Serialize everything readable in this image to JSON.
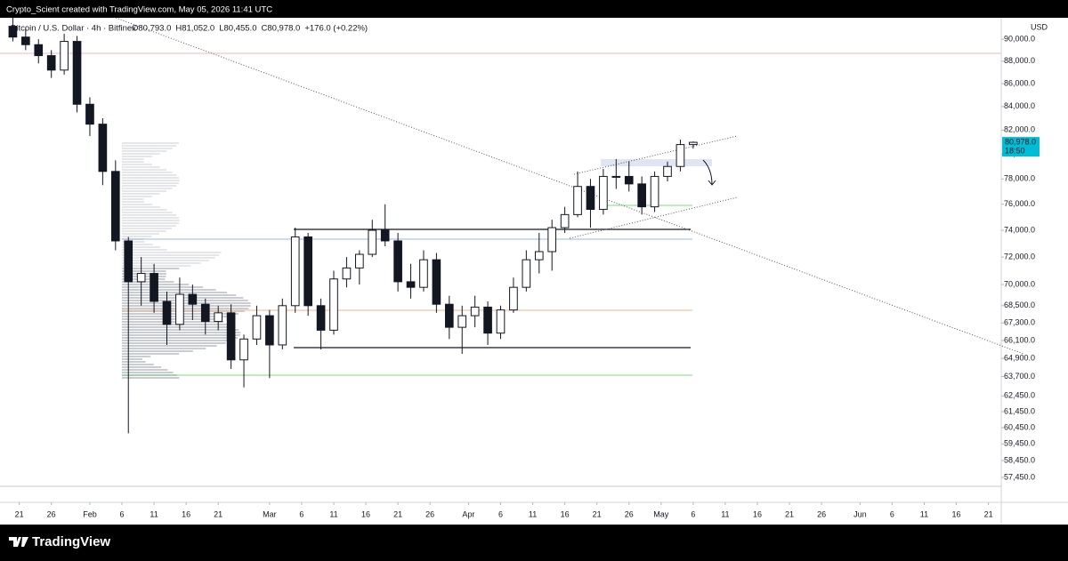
{
  "header": "Crypto_Scient created with TradingView.com, May 05, 2026 11:41 UTC",
  "brand": "TradingView",
  "chart_data": {
    "type": "candlestick",
    "title": "Bitcoin / U.S. Dollar · 4h · Bitfinex",
    "ohlc_labels": [
      "O80,793.0",
      "H81,052.0",
      "L80,455.0",
      "C80,978.0",
      "+176.0 (+0.22%)"
    ],
    "currency": "USD",
    "last_price_label": "80,978.0",
    "countdown": "18:50",
    "log_scale": true,
    "colors": {
      "up": "#ffffff",
      "down": "#131722",
      "wick": "#131722",
      "last_price": "#00bcd4"
    },
    "ylim": [
      56000,
      92000
    ],
    "yticks": [
      {
        "value": 90000,
        "label": "90,000.0"
      },
      {
        "value": 88000,
        "label": "88,000.0"
      },
      {
        "value": 86000,
        "label": "86,000.0"
      },
      {
        "value": 84000,
        "label": "84,000.0"
      },
      {
        "value": 82000,
        "label": "82,000.0"
      },
      {
        "value": 80000,
        "label": "80,000.0"
      },
      {
        "value": 78000,
        "label": "78,000.0"
      },
      {
        "value": 76000,
        "label": "76,000.0"
      },
      {
        "value": 74000,
        "label": "74,000.0"
      },
      {
        "value": 72000,
        "label": "72,000.0"
      },
      {
        "value": 70000,
        "label": "70,000.0"
      },
      {
        "value": 68500,
        "label": "68,500.0"
      },
      {
        "value": 67300,
        "label": "67,300.0"
      },
      {
        "value": 66100,
        "label": "66,100.0"
      },
      {
        "value": 64900,
        "label": "64,900.0"
      },
      {
        "value": 63700,
        "label": "63,700.0"
      },
      {
        "value": 62450,
        "label": "62,450.0"
      },
      {
        "value": 61450,
        "label": "61,450.0"
      },
      {
        "value": 60450,
        "label": "60,450.0"
      },
      {
        "value": 59450,
        "label": "59,450.0"
      },
      {
        "value": 58450,
        "label": "58,450.0"
      },
      {
        "value": 57450,
        "label": "57,450.0"
      }
    ],
    "xlim": [
      "2026-01-18",
      "2026-06-23"
    ],
    "xticks": [
      {
        "value": "2026-01-21",
        "label": "21"
      },
      {
        "value": "2026-01-26",
        "label": "26"
      },
      {
        "value": "2026-02-01",
        "label": "Feb"
      },
      {
        "value": "2026-02-06",
        "label": "6"
      },
      {
        "value": "2026-02-11",
        "label": "11"
      },
      {
        "value": "2026-02-16",
        "label": "16"
      },
      {
        "value": "2026-02-21",
        "label": "21"
      },
      {
        "value": "2026-03-01",
        "label": "Mar"
      },
      {
        "value": "2026-03-06",
        "label": "6"
      },
      {
        "value": "2026-03-11",
        "label": "11"
      },
      {
        "value": "2026-03-16",
        "label": "16"
      },
      {
        "value": "2026-03-21",
        "label": "21"
      },
      {
        "value": "2026-03-26",
        "label": "26"
      },
      {
        "value": "2026-04-01",
        "label": "Apr"
      },
      {
        "value": "2026-04-06",
        "label": "6"
      },
      {
        "value": "2026-04-11",
        "label": "11"
      },
      {
        "value": "2026-04-16",
        "label": "16"
      },
      {
        "value": "2026-04-21",
        "label": "21"
      },
      {
        "value": "2026-04-26",
        "label": "26"
      },
      {
        "value": "2026-05-01",
        "label": "May"
      },
      {
        "value": "2026-05-06",
        "label": "6"
      },
      {
        "value": "2026-05-11",
        "label": "11"
      },
      {
        "value": "2026-05-16",
        "label": "16"
      },
      {
        "value": "2026-05-21",
        "label": "21"
      },
      {
        "value": "2026-05-26",
        "label": "26"
      },
      {
        "value": "2026-06-01",
        "label": "Jun"
      },
      {
        "value": "2026-06-06",
        "label": "6"
      },
      {
        "value": "2026-06-11",
        "label": "11"
      },
      {
        "value": "2026-06-16",
        "label": "16"
      },
      {
        "value": "2026-06-21",
        "label": "21"
      }
    ],
    "x": [
      "2026-01-19",
      "2026-01-21",
      "2026-01-23",
      "2026-01-25",
      "2026-01-27",
      "2026-01-29",
      "2026-01-31",
      "2026-02-02",
      "2026-02-04",
      "2026-02-06",
      "2026-02-08",
      "2026-02-10",
      "2026-02-12",
      "2026-02-14",
      "2026-02-16",
      "2026-02-18",
      "2026-02-20",
      "2026-02-22",
      "2026-02-24",
      "2026-02-26",
      "2026-02-28",
      "2026-03-02",
      "2026-03-04",
      "2026-03-06",
      "2026-03-08",
      "2026-03-10",
      "2026-03-12",
      "2026-03-14",
      "2026-03-16",
      "2026-03-18",
      "2026-03-20",
      "2026-03-22",
      "2026-03-24",
      "2026-03-26",
      "2026-03-28",
      "2026-03-30",
      "2026-04-01",
      "2026-04-03",
      "2026-04-05",
      "2026-04-07",
      "2026-04-09",
      "2026-04-11",
      "2026-04-13",
      "2026-04-15",
      "2026-04-17",
      "2026-04-19",
      "2026-04-21",
      "2026-04-23",
      "2026-04-25",
      "2026-04-27",
      "2026-04-29",
      "2026-05-01",
      "2026-05-03",
      "2026-05-05"
    ],
    "open": [
      91200,
      90200,
      89500,
      88500,
      87200,
      89800,
      84200,
      82500,
      78600,
      73200,
      70200,
      70800,
      68800,
      67200,
      69300,
      68600,
      67400,
      68000,
      64800,
      66200,
      67800,
      65800,
      68500,
      73500,
      68500,
      66800,
      70400,
      71200,
      72200,
      74000,
      73200,
      70200,
      69800,
      71800,
      68600,
      67000,
      67800,
      68400,
      66600,
      68200,
      69800,
      71800,
      72400,
      74200,
      75200,
      77400,
      75600,
      78200,
      78200,
      77600,
      75800,
      78200,
      79000,
      80793
    ],
    "high": [
      92000,
      91000,
      90000,
      89000,
      90500,
      90300,
      84800,
      83000,
      79500,
      73500,
      72000,
      71500,
      69500,
      70500,
      70000,
      69000,
      68500,
      68600,
      66500,
      68500,
      68200,
      69000,
      74200,
      73800,
      69000,
      71000,
      72000,
      72500,
      74800,
      76000,
      73800,
      71500,
      72500,
      72300,
      69200,
      68500,
      69200,
      68800,
      68500,
      70500,
      72500,
      73800,
      74800,
      75800,
      78600,
      78000,
      78800,
      79600,
      79400,
      78200,
      78600,
      79400,
      81200,
      81052
    ],
    "low": [
      89800,
      89000,
      87800,
      86500,
      86800,
      83500,
      81500,
      77500,
      72500,
      60100,
      68500,
      68000,
      65800,
      66800,
      67500,
      66500,
      66800,
      64200,
      63000,
      65800,
      63600,
      65500,
      68000,
      67800,
      65500,
      66500,
      69800,
      70000,
      72000,
      72800,
      69500,
      69000,
      69500,
      68000,
      66200,
      65200,
      67000,
      65800,
      66200,
      68000,
      69500,
      70800,
      71000,
      73800,
      75000,
      74200,
      75200,
      77200,
      77000,
      75200,
      75400,
      77800,
      78600,
      80455
    ],
    "close": [
      90200,
      89500,
      88500,
      87200,
      89800,
      84200,
      82500,
      78600,
      73200,
      70200,
      70800,
      68800,
      67200,
      69300,
      68600,
      67400,
      68000,
      64800,
      66200,
      67800,
      65800,
      68500,
      73500,
      68500,
      66800,
      70400,
      71200,
      72200,
      74000,
      73200,
      70200,
      69800,
      71800,
      68600,
      67000,
      67800,
      68400,
      66600,
      68200,
      69800,
      71800,
      72400,
      74200,
      75200,
      77400,
      75600,
      78200,
      78200,
      77600,
      75800,
      78200,
      79000,
      80793,
      80978
    ]
  }
}
